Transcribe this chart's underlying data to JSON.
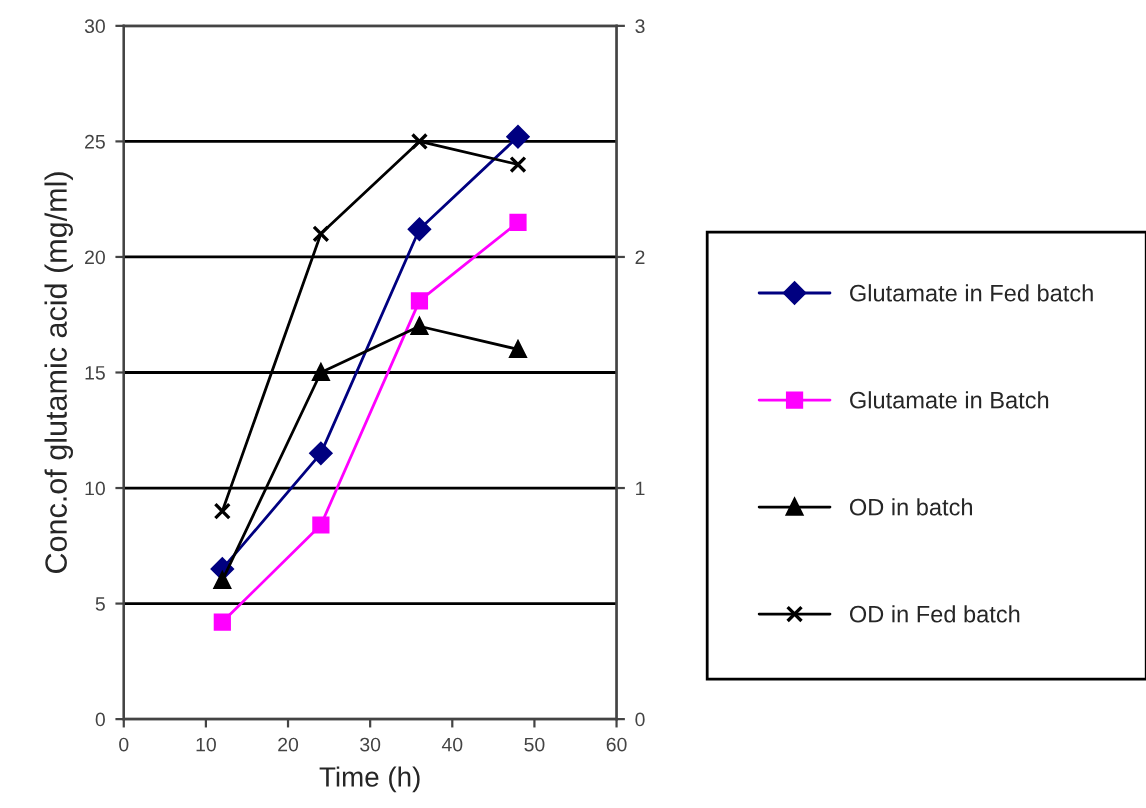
{
  "chart_data": {
    "type": "line",
    "xlabel": "Time (h)",
    "ylabel": "Conc.of glutamic acid (mg/ml)",
    "x": [
      12,
      24,
      36,
      48
    ],
    "series": [
      {
        "name": "Glutamate in Fed batch",
        "color": "#000080",
        "marker": "diamond",
        "values": [
          6.5,
          11.5,
          21.2,
          25.2
        ]
      },
      {
        "name": "Glutamate in Batch",
        "color": "#ff00ff",
        "marker": "square",
        "values": [
          4.2,
          8.4,
          18.1,
          21.5
        ]
      },
      {
        "name": "OD in batch",
        "color": "#000000",
        "marker": "triangle",
        "axis": "y2",
        "values": [
          0.6,
          1.5,
          1.7,
          1.6
        ]
      },
      {
        "name": "OD in Fed batch",
        "color": "#000000",
        "marker": "cross",
        "axis": "y2",
        "values": [
          0.9,
          2.1,
          2.5,
          2.4
        ]
      }
    ],
    "xlim": [
      0,
      60
    ],
    "xticks": [
      0,
      10,
      20,
      30,
      40,
      50,
      60
    ],
    "ylim": [
      0,
      30
    ],
    "yticks": [
      0,
      5,
      10,
      15,
      20,
      25,
      30
    ],
    "y2lim": [
      0,
      3
    ],
    "y2ticks": [
      0,
      1,
      2,
      3
    ],
    "grid": "y",
    "legend": "right",
    "line_style": "solid"
  }
}
